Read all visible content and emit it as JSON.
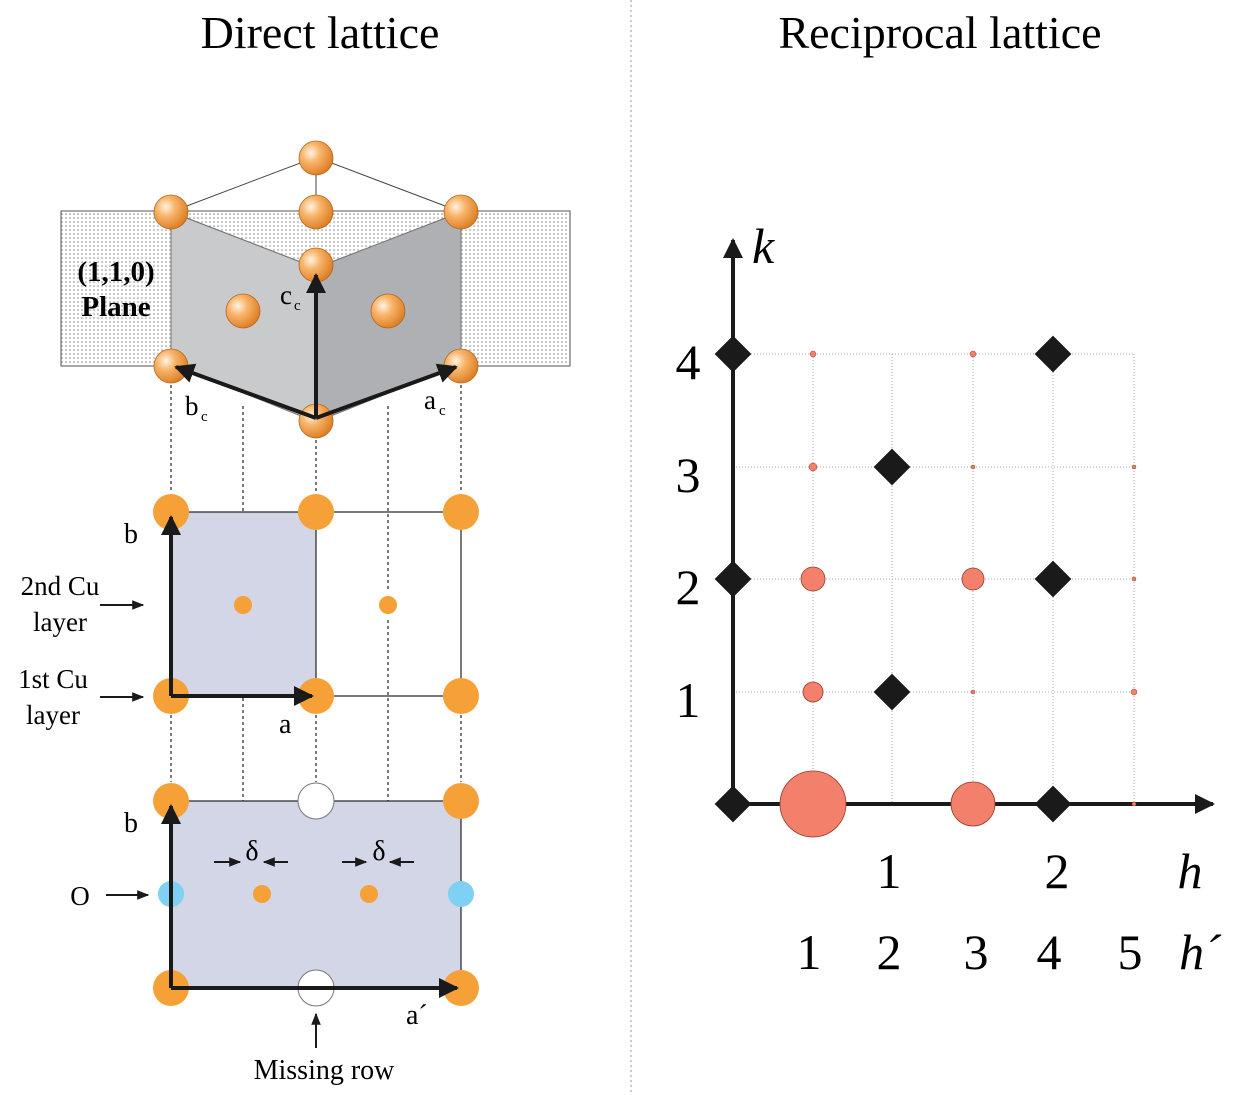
{
  "titles": {
    "left": "Direct lattice",
    "right": "Reciprocal lattice"
  },
  "direct": {
    "plane_label_1": "(1,1,0)",
    "plane_label_2": "Plane",
    "vec_cc": "c",
    "vec_cc_sub": "c",
    "vec_bc": "b",
    "vec_bc_sub": "c",
    "vec_ac": "a",
    "vec_ac_sub": "c",
    "mid_b": "b",
    "mid_a": "a",
    "layer2_line1": "2nd Cu",
    "layer2_line2": "layer",
    "layer1_line1": "1st Cu",
    "layer1_line2": "layer",
    "bot_b": "b",
    "bot_a": "a´",
    "delta": "δ",
    "oxygen": "O",
    "missing_row": "Missing row"
  },
  "reciprocal": {
    "k_label": "k",
    "h_label": "h",
    "hp_label": "h´",
    "k_ticks": [
      "1",
      "2",
      "3",
      "4"
    ],
    "h_ticks": [
      "1",
      "2"
    ],
    "hp_ticks": [
      "1",
      "2",
      "3",
      "4",
      "5"
    ]
  },
  "colors": {
    "orange_atom": "#F6A038",
    "oxygen_atom": "#7FD0F2",
    "salmon_peak": "#F2806A",
    "unit_cell_fill": "#D2D6E6",
    "plane_grey_light": "#C9CACC",
    "plane_grey_dark": "#AEB0B3"
  }
}
